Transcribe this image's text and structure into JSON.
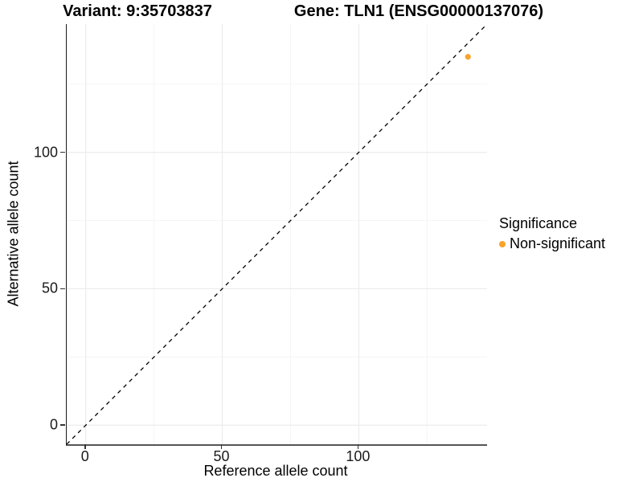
{
  "chart_data": {
    "type": "scatter",
    "titles": [
      "Variant: 9:35703837",
      "Gene: TLN1 (ENSG00000137076)"
    ],
    "xlabel": "Reference allele count",
    "ylabel": "Alternative allele count",
    "xlim": [
      -7,
      147
    ],
    "ylim": [
      -7,
      147
    ],
    "x_ticks_major": [
      0,
      50,
      100
    ],
    "x_ticks_minor": [
      25,
      75,
      125
    ],
    "y_ticks_major": [
      0,
      50,
      100
    ],
    "y_ticks_minor": [
      25,
      75,
      125
    ],
    "x_tick_labels": [
      "0",
      "50",
      "100"
    ],
    "y_tick_labels": [
      "0",
      "50",
      "100"
    ],
    "grid": "major and minor gridlines, very light gray on white",
    "legend": {
      "title": "Significance",
      "position": "right"
    },
    "series": [
      {
        "name": "Non-significant",
        "color": "#F9A32B",
        "points": [
          [
            140,
            135
          ]
        ]
      }
    ],
    "reference_line": {
      "type": "identity",
      "slope": 1,
      "intercept": 0,
      "style": "dashed",
      "color": "#000000"
    }
  },
  "colors": {
    "major_grid": "#ececec",
    "minor_grid": "#f5f5f5",
    "axis_line_left": "#1a1a1a",
    "axis_line_bottom": "#555555",
    "tick": "#333333"
  }
}
